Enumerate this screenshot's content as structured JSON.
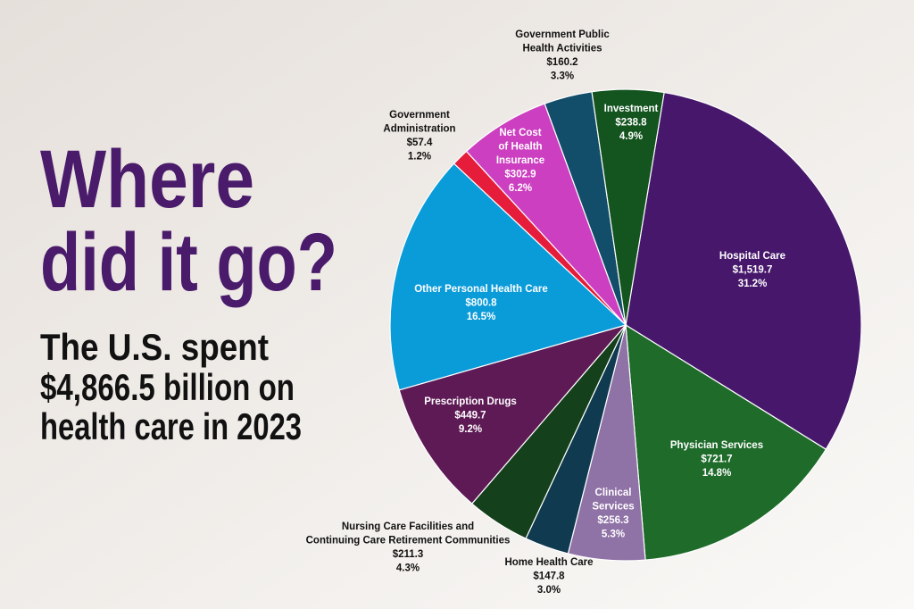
{
  "headline": [
    "Where",
    "did it go?"
  ],
  "subtitle": [
    "The U.S. spent",
    "$4,866.5 billion on",
    "health care in 2023"
  ],
  "colors": {
    "title": "#4a1a6b",
    "background_start": "#e8e2dd",
    "background_end": "#f8f7f5"
  },
  "chart_data": {
    "type": "pie",
    "title": "Where did it go?",
    "unit": "billions of dollars",
    "slices": [
      {
        "name": "Hospital Care",
        "label_lines": [
          "Hospital Care"
        ],
        "value_label": "$1,519.7",
        "value": 1519.7,
        "percent": 31.2,
        "percent_label": "31.2%",
        "color": "#46176b",
        "label_inside": true
      },
      {
        "name": "Physician Services",
        "label_lines": [
          "Physician Services"
        ],
        "value_label": "$721.7",
        "value": 721.7,
        "percent": 14.8,
        "percent_label": "14.8%",
        "color": "#1e6b2a",
        "label_inside": true
      },
      {
        "name": "Clinical Services",
        "label_lines": [
          "Clinical",
          "Services"
        ],
        "value_label": "$256.3",
        "value": 256.3,
        "percent": 5.3,
        "percent_label": "5.3%",
        "color": "#8f72a6",
        "label_inside": true
      },
      {
        "name": "Home Health Care",
        "label_lines": [
          "Home Health Care"
        ],
        "value_label": "$147.8",
        "value": 147.8,
        "percent": 3.0,
        "percent_label": "3.0%",
        "color": "#0f3a4f",
        "label_inside": false
      },
      {
        "name": "Nursing Care Facilities and Continuing Care Retirement Communities",
        "label_lines": [
          "Nursing Care Facilities and",
          "Continuing Care Retirement Communities"
        ],
        "value_label": "$211.3",
        "value": 211.3,
        "percent": 4.3,
        "percent_label": "4.3%",
        "color": "#14401b",
        "label_inside": false
      },
      {
        "name": "Prescription Drugs",
        "label_lines": [
          "Prescription Drugs"
        ],
        "value_label": "$449.7",
        "value": 449.7,
        "percent": 9.2,
        "percent_label": "9.2%",
        "color": "#5e1a55",
        "label_inside": true
      },
      {
        "name": "Other Personal Health Care",
        "label_lines": [
          "Other Personal Health Care"
        ],
        "value_label": "$800.8",
        "value": 800.8,
        "percent": 16.5,
        "percent_label": "16.5%",
        "color": "#0a9bd9",
        "label_inside": true
      },
      {
        "name": "Government Administration",
        "label_lines": [
          "Government",
          "Administration"
        ],
        "value_label": "$57.4",
        "value": 57.4,
        "percent": 1.2,
        "percent_label": "1.2%",
        "color": "#e51c3a",
        "label_inside": false
      },
      {
        "name": "Net Cost of Health Insurance",
        "label_lines": [
          "Net Cost",
          "of Health",
          "Insurance"
        ],
        "value_label": "$302.9",
        "value": 302.9,
        "percent": 6.2,
        "percent_label": "6.2%",
        "color": "#cc3fc0",
        "label_inside": true
      },
      {
        "name": "Government Public Health Activities",
        "label_lines": [
          "Government Public",
          "Health Activities"
        ],
        "value_label": "$160.2",
        "value": 160.2,
        "percent": 3.3,
        "percent_label": "3.3%",
        "color": "#124d69",
        "label_inside": false
      },
      {
        "name": "Investment",
        "label_lines": [
          "Investment"
        ],
        "value_label": "$238.8",
        "value": 238.8,
        "percent": 4.9,
        "percent_label": "4.9%",
        "color": "#13541f",
        "label_inside": true
      }
    ]
  }
}
